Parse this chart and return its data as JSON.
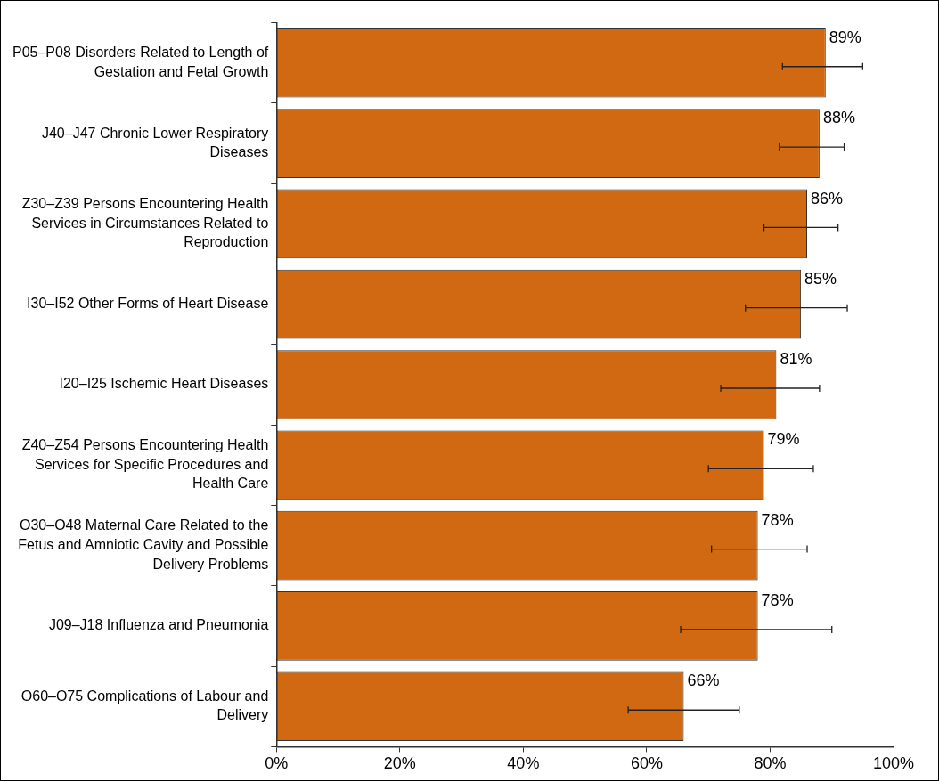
{
  "chart_data": {
    "type": "bar",
    "orientation": "horizontal",
    "categories": [
      "P05–P08 Disorders Related to Length of Gestation and Fetal Growth",
      "J40–J47 Chronic Lower Respiratory Diseases",
      "Z30–Z39 Persons Encountering Health Services in Circumstances Related to Reproduction",
      "I30–I52 Other Forms of Heart Disease",
      "I20–I25 Ischemic Heart Diseases",
      "Z40–Z54 Persons Encountering Health Services for Specific Procedures and Health Care",
      "O30–O48 Maternal Care Related to the Fetus and Amniotic Cavity and Possible Delivery Problems",
      "J09–J18 Influenza and Pneumonia",
      "O60–O75 Complications of Labour and Delivery"
    ],
    "values": [
      89,
      88,
      86,
      85,
      81,
      79,
      78,
      78,
      66
    ],
    "color": "#d06912",
    "errors": [
      [
        82,
        95
      ],
      [
        81.5,
        92
      ],
      [
        79,
        91
      ],
      [
        76,
        92.5
      ],
      [
        72,
        88
      ],
      [
        70,
        87
      ],
      [
        70.5,
        86
      ],
      [
        65.5,
        90
      ],
      [
        57,
        75
      ]
    ],
    "value_labels": [
      "89%",
      "88%",
      "86%",
      "85%",
      "81%",
      "79%",
      "78%",
      "78%",
      "66%"
    ],
    "xlim": [
      0,
      100
    ],
    "xticks": [
      {
        "value": 0,
        "label": "0%"
      },
      {
        "value": 20,
        "label": "20%"
      },
      {
        "value": 40,
        "label": "40%"
      },
      {
        "value": 60,
        "label": "60%"
      },
      {
        "value": 80,
        "label": "80%"
      },
      {
        "value": 100,
        "label": "100%"
      }
    ]
  }
}
